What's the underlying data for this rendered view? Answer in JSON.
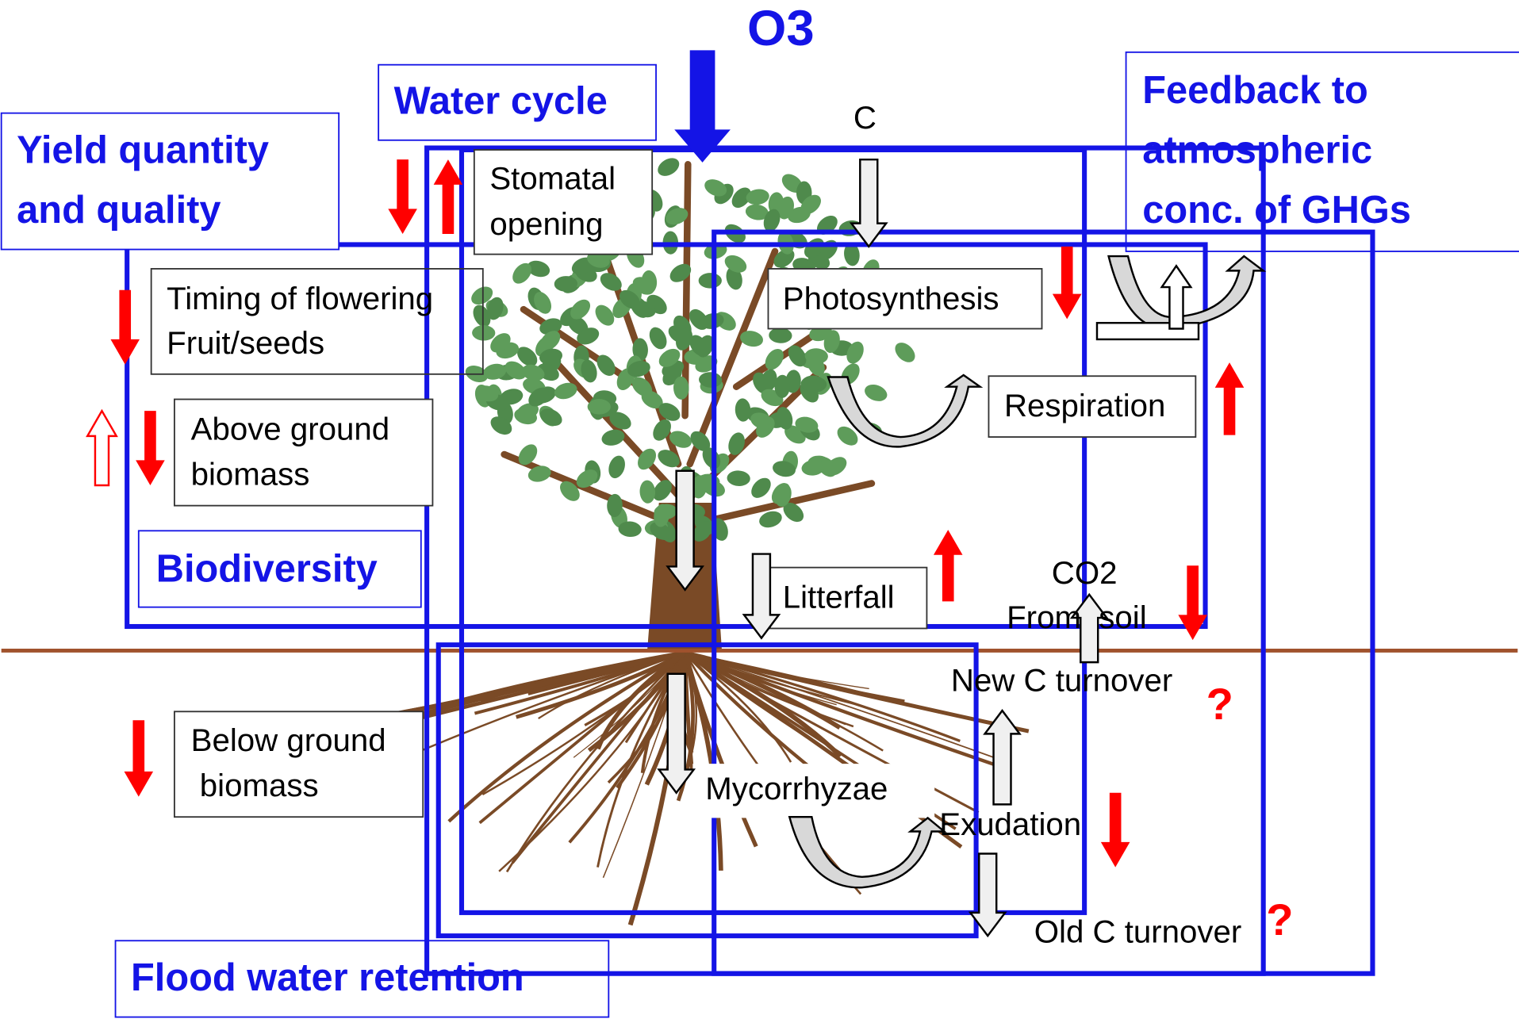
{
  "title": "O3",
  "impact_boxes": [
    {
      "lines": [
        "Yield quantity",
        "and quality"
      ]
    },
    {
      "lines": [
        "Water cycle"
      ]
    },
    {
      "lines": [
        "Feedback to",
        "atmospheric",
        "conc. of GHGs"
      ]
    },
    {
      "lines": [
        "Biodiversity"
      ]
    },
    {
      "lines": [
        "Flood water retention"
      ]
    }
  ],
  "plant_traits": [
    {
      "lines": [
        "Stomatal",
        "opening"
      ]
    },
    {
      "lines": [
        "Timing of flowering",
        "Fruit/seeds"
      ]
    },
    {
      "lines": [
        "Above ground",
        "biomass"
      ]
    },
    {
      "lines": [
        "Below ground",
        " biomass"
      ]
    }
  ],
  "processes": [
    {
      "lines": [
        "C"
      ]
    },
    {
      "lines": [
        "Photosynthesis"
      ]
    },
    {
      "lines": [
        "Respiration"
      ]
    },
    {
      "lines": [
        "Litterfall"
      ]
    },
    {
      "lines": [
        "CO2",
        "From  soil"
      ]
    },
    {
      "lines": [
        "New C turnover"
      ]
    },
    {
      "lines": [
        "Mycorrhyzae"
      ]
    },
    {
      "lines": [
        "Exudation"
      ]
    },
    {
      "lines": [
        "Old C turnover"
      ]
    }
  ],
  "uncertainty_markers": [
    "?",
    "?"
  ]
}
